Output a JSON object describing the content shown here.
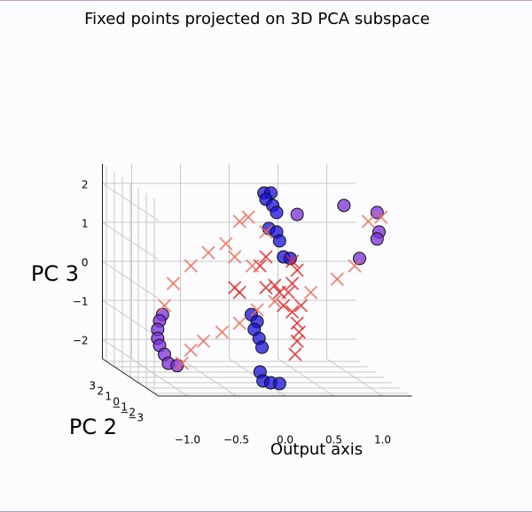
{
  "chart_data": {
    "type": "scatter3d",
    "title": "Fixed points projected on 3D PCA subspace",
    "xlabel": "Output axis",
    "ylabel": "PC 2",
    "zlabel": "PC 3",
    "xlim": [
      -1.3,
      1.3
    ],
    "ylim": [
      -3.5,
      3.5
    ],
    "zlim": [
      -2.5,
      2.5
    ],
    "xticks": [
      {
        "value": -1.0,
        "label": "−1.0"
      },
      {
        "value": -0.5,
        "label": "−0.5"
      },
      {
        "value": 0.0,
        "label": "0.0"
      },
      {
        "value": 0.5,
        "label": "0.5"
      },
      {
        "value": 1.0,
        "label": "1.0"
      }
    ],
    "yticks": [
      3,
      2,
      1,
      0,
      {
        "value": -1,
        "label": "−1"
      },
      {
        "value": -2,
        "label": "−2"
      },
      {
        "value": -3,
        "label": "−3"
      }
    ],
    "zticks": [
      2,
      1,
      0,
      {
        "value": -1,
        "label": "−1"
      },
      {
        "value": -2,
        "label": "−2"
      }
    ],
    "grid": true,
    "series": [
      {
        "marker": "o",
        "color": "#1a10d8",
        "x": [
          0.07,
          0.14,
          0.09,
          0.16,
          0.2,
          0.12,
          0.2,
          0.23,
          0.27,
          0.34,
          -0.06,
          0,
          -0.03,
          0.02,
          0.05,
          0.03,
          0.06,
          0.14,
          0.23
        ],
        "y": [
          0,
          0,
          0,
          0,
          0,
          0,
          0,
          0,
          0,
          0,
          0,
          0,
          0,
          0,
          0,
          0,
          0,
          0,
          0
        ],
        "z": [
          2.23,
          2.23,
          2.07,
          1.91,
          1.73,
          1.32,
          1.23,
          1.0,
          0.59,
          0.55,
          -0.89,
          -1.07,
          -1.27,
          -1.5,
          -1.73,
          -2.36,
          -2.59,
          -2.64,
          -2.66
        ]
      },
      {
        "marker": "o",
        "color": "#7a2fd8",
        "x": [
          -0.97,
          -1.0,
          -1.02,
          -1.02,
          -1.0,
          -0.95,
          -0.91,
          -0.82,
          0.41,
          0.89,
          1.23,
          1.25,
          1.23,
          1.05
        ],
        "y": [
          0,
          0,
          0,
          0,
          0,
          0,
          0,
          0,
          0,
          0,
          0,
          0,
          0,
          0
        ],
        "z": [
          -0.89,
          -1.05,
          -1.27,
          -1.5,
          -1.68,
          -1.91,
          -2.14,
          -2.2,
          1.68,
          1.91,
          1.73,
          1.23,
          1.05,
          0.55
        ]
      },
      {
        "marker": "x",
        "color": "#e8231f",
        "x": [
          0.09,
          0.03,
          0.18,
          0.23,
          0.27,
          0.36,
          0.41,
          0.43,
          0.41,
          0.39,
          -0.18,
          -0.23,
          0.41,
          0.45,
          0.09,
          0.32,
          0.36,
          0.36
        ],
        "y": [
          0,
          0,
          0,
          0,
          0,
          0,
          0,
          0,
          0,
          0,
          0,
          0,
          0,
          0,
          0,
          0,
          0,
          0
        ],
        "z": [
          0.59,
          0.36,
          -0.14,
          -0.32,
          -0.66,
          -0.82,
          -1.11,
          -1.34,
          -1.57,
          -1.91,
          -0.32,
          -0.2,
          0.25,
          -0.66,
          -0.2,
          -0.32,
          0.48,
          -0.09
        ]
      },
      {
        "marker": "x",
        "color": "#f06a55",
        "x": [
          -0.77,
          -0.95,
          -0.86,
          -0.68,
          -0.5,
          -0.32,
          -0.18,
          -0.09,
          0.09,
          -0.23,
          -0.05,
          -0.68,
          -0.55,
          -0.36,
          -0.18,
          0,
          0.18,
          0.55,
          0.82,
          1.14,
          1.27,
          1.0
        ],
        "y": [
          0,
          0,
          0,
          0,
          0,
          0,
          0,
          0,
          0,
          0,
          0,
          0,
          0,
          0,
          0,
          0,
          0,
          0,
          0,
          0,
          0,
          0
        ],
        "z": [
          -2.14,
          -0.66,
          -0.09,
          0.36,
          0.7,
          0.93,
          1.5,
          1.61,
          1.23,
          0.59,
          0.36,
          -1.8,
          -1.57,
          -1.34,
          -1.11,
          -0.77,
          -0.55,
          -0.32,
          0.02,
          1.5,
          1.61,
          0.36
        ]
      }
    ]
  }
}
